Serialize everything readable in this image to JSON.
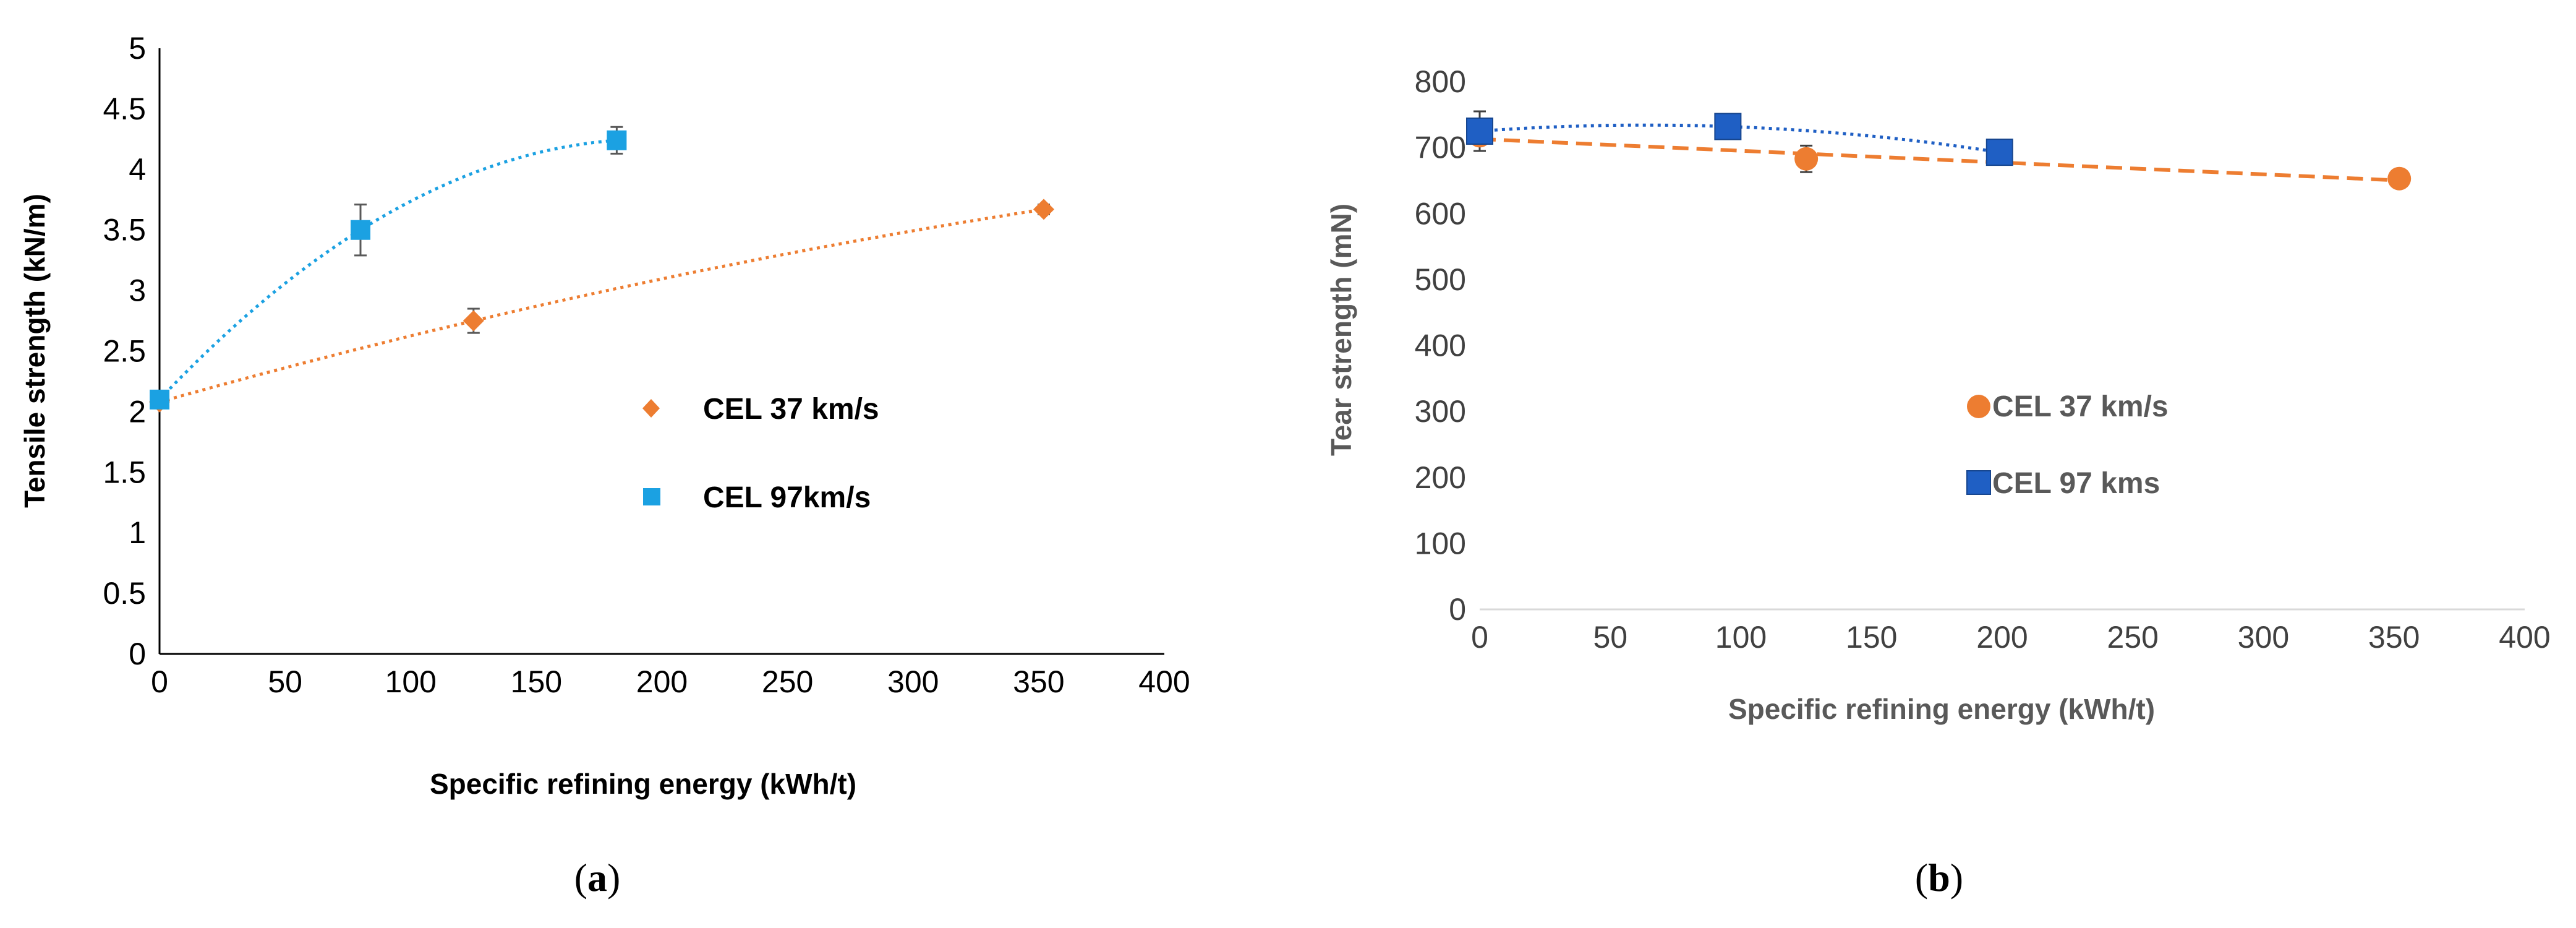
{
  "chart_data": [
    {
      "panel": "a",
      "type": "scatter",
      "panel_label": {
        "open": "(",
        "letter": "a",
        "close": ")"
      },
      "xlabel": "Specific refining energy (kWh/t)",
      "ylabel": "Tensile strength (kN/m)",
      "xlim": [
        0,
        400
      ],
      "ylim": [
        0,
        5
      ],
      "xticks": [
        0,
        50,
        100,
        150,
        200,
        250,
        300,
        350,
        400
      ],
      "yticks": [
        0,
        0.5,
        1,
        1.5,
        2,
        2.5,
        3,
        3.5,
        4,
        4.5,
        5
      ],
      "xtick_labels": [
        "0",
        "50",
        "100",
        "150",
        "200",
        "250",
        "300",
        "350",
        "400"
      ],
      "ytick_labels": [
        "0",
        "0.5",
        "1",
        "1.5",
        "2",
        "2.5",
        "3",
        "3.5",
        "4",
        "4.5",
        "5"
      ],
      "grid": false,
      "legend_position": "center-right",
      "series": [
        {
          "name": "CEL 37 km/s",
          "marker": "diamond",
          "color": "#ED7D31",
          "x": [
            0,
            125,
            352
          ],
          "y": [
            2.08,
            2.75,
            3.67
          ],
          "err": [
            0.04,
            0.1,
            0.04
          ],
          "trendline": "dotted"
        },
        {
          "name": "CEL 97km/s",
          "marker": "square",
          "color": "#1BA1E2",
          "x": [
            0,
            80,
            182
          ],
          "y": [
            2.1,
            3.5,
            4.24
          ],
          "err": [
            0.04,
            0.21,
            0.11
          ],
          "trendline": "dotted"
        }
      ]
    },
    {
      "panel": "b",
      "type": "scatter",
      "panel_label": {
        "open": "(",
        "letter": "b",
        "close": ")"
      },
      "xlabel": "Specific refining energy (kWh/t)",
      "ylabel": "Tear strength (mN)",
      "xlim": [
        0,
        400
      ],
      "ylim": [
        0,
        800
      ],
      "xticks": [
        0,
        50,
        100,
        150,
        200,
        250,
        300,
        350,
        400
      ],
      "yticks": [
        0,
        100,
        200,
        300,
        400,
        500,
        600,
        700,
        800
      ],
      "xtick_labels": [
        "0",
        "50",
        "100",
        "150",
        "200",
        "250",
        "300",
        "350",
        "400"
      ],
      "ytick_labels": [
        "0",
        "100",
        "200",
        "300",
        "400",
        "500",
        "600",
        "700",
        "800"
      ],
      "grid": false,
      "legend_position": "center",
      "series": [
        {
          "name": "CEL 37 km/s",
          "marker": "circle",
          "color": "#ED7D31",
          "x": [
            0,
            125,
            352
          ],
          "y": [
            718,
            683,
            653
          ],
          "err": [
            10,
            20,
            12
          ],
          "trendline": "dashed"
        },
        {
          "name": "CEL 97 kms",
          "marker": "square",
          "color": "#1F5FC4",
          "x": [
            0,
            95,
            199
          ],
          "y": [
            725,
            732,
            693
          ],
          "err": [
            30,
            18,
            12
          ],
          "trendline": "dotted"
        }
      ]
    }
  ]
}
